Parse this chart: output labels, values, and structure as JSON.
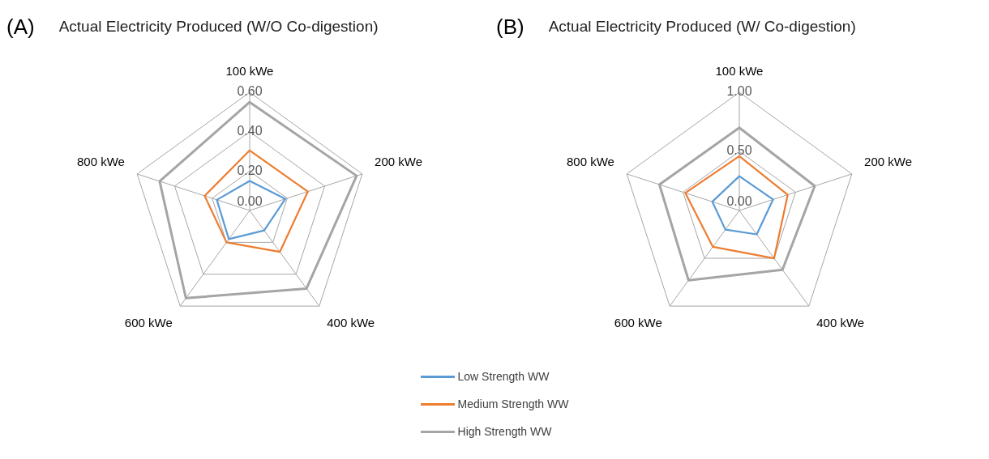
{
  "chart_data": [
    {
      "type": "radar",
      "title": "Actual Electricity Produced (W/O Co-digestion)",
      "annotations": [
        "(A)"
      ],
      "categories": [
        "100 kWe",
        "200 kWe",
        "400 kWe",
        "600 kWe",
        "800 kWe"
      ],
      "ylim": [
        0,
        0.6
      ],
      "yticks": [
        {
          "value": 0,
          "label": "0.00"
        },
        {
          "value": 0.2,
          "label": "0.20"
        },
        {
          "value": 0.4,
          "label": "0.40"
        },
        {
          "value": 0.6,
          "label": "0.60"
        }
      ],
      "grid": true,
      "legend": "bottom",
      "series": [
        {
          "name": "Low Strength WW",
          "color": "#5b9bd5",
          "values": [
            0.15,
            0.19,
            0.125,
            0.18,
            0.175
          ]
        },
        {
          "name": "Medium Strength WW",
          "color": "#ed7d31",
          "values": [
            0.305,
            0.31,
            0.26,
            0.2,
            0.24
          ]
        },
        {
          "name": "High Strength WW",
          "color": "#a5a5a5",
          "values": [
            0.55,
            0.57,
            0.49,
            0.55,
            0.48
          ]
        }
      ]
    },
    {
      "type": "radar",
      "title": "Actual Electricity Produced (W/ Co-digestion)",
      "annotations": [
        "(B)"
      ],
      "categories": [
        "100 kWe",
        "200 kWe",
        "400 kWe",
        "600 kWe",
        "800 kWe"
      ],
      "ylim": [
        0,
        1
      ],
      "yticks": [
        {
          "value": 0,
          "label": "0.00"
        },
        {
          "value": 0.5,
          "label": "0.50"
        },
        {
          "value": 1,
          "label": "1.00"
        }
      ],
      "grid": true,
      "legend": "bottom",
      "series": [
        {
          "name": "Low Strength WW",
          "color": "#5b9bd5",
          "values": [
            0.29,
            0.3,
            0.25,
            0.2,
            0.24
          ]
        },
        {
          "name": "Medium Strength WW",
          "color": "#ed7d31",
          "values": [
            0.46,
            0.43,
            0.5,
            0.38,
            0.48
          ]
        },
        {
          "name": "High Strength WW",
          "color": "#a5a5a5",
          "values": [
            0.7,
            0.67,
            0.62,
            0.73,
            0.71
          ]
        }
      ]
    }
  ]
}
